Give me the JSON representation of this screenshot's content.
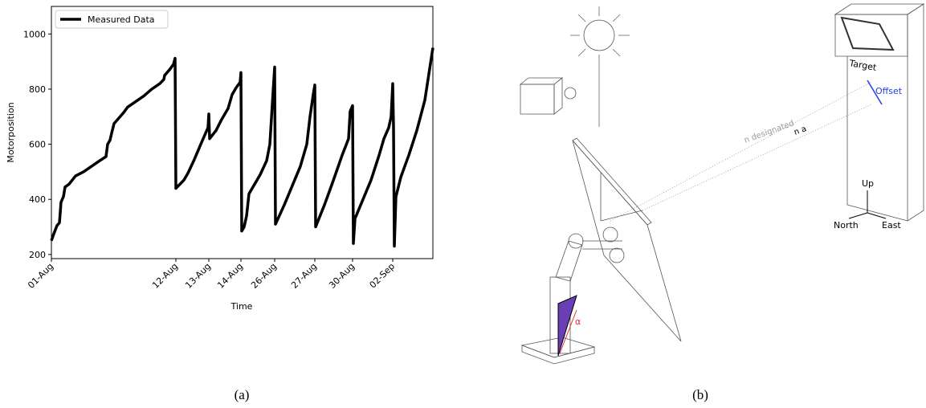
{
  "chart_data": {
    "type": "line",
    "x_label": "Time",
    "y_label": "Motorposition",
    "x": [
      0,
      3,
      7,
      10,
      12,
      15,
      17,
      22,
      26,
      30,
      40,
      50,
      60,
      68,
      70,
      73,
      75,
      78,
      84,
      90,
      95,
      105,
      115,
      125,
      135,
      140,
      141,
      147,
      152,
      154,
      155,
      160,
      165,
      170,
      178,
      186,
      192,
      195,
      196,
      197,
      205,
      212,
      220,
      225,
      230,
      235,
      236,
      237,
      240,
      243,
      246,
      252,
      260,
      268,
      272,
      276,
      278,
      279,
      290,
      300,
      310,
      318,
      322,
      326,
      328,
      329,
      340,
      350,
      362,
      370,
      372,
      375,
      376,
      378,
      388,
      398,
      408,
      414,
      420,
      423,
      425,
      426,
      427,
      429,
      435,
      445,
      455,
      465,
      475
    ],
    "series": [
      {
        "name": "Measured Data",
        "color": "#000000",
        "values": [
          250,
          275,
          305,
          315,
          390,
          410,
          445,
          455,
          470,
          485,
          500,
          520,
          540,
          555,
          600,
          615,
          640,
          675,
          695,
          715,
          735,
          755,
          775,
          800,
          820,
          835,
          850,
          870,
          890,
          912,
          440,
          455,
          470,
          495,
          545,
          600,
          640,
          660,
          710,
          620,
          650,
          690,
          730,
          780,
          805,
          825,
          860,
          285,
          300,
          340,
          420,
          450,
          490,
          540,
          600,
          790,
          880,
          310,
          380,
          450,
          520,
          600,
          700,
          780,
          815,
          300,
          380,
          460,
          560,
          620,
          720,
          740,
          240,
          330,
          400,
          470,
          560,
          620,
          660,
          700,
          820,
          660,
          230,
          410,
          480,
          560,
          650,
          760,
          950
        ]
      }
    ],
    "xlim": [
      0,
      475
    ],
    "xticks": [
      {
        "value": 0,
        "label": "01-Aug"
      },
      {
        "value": 155,
        "label": "12-Aug"
      },
      {
        "value": 196,
        "label": "13-Aug"
      },
      {
        "value": 236,
        "label": "14-Aug"
      },
      {
        "value": 278,
        "label": "26-Aug"
      },
      {
        "value": 328,
        "label": "27-Aug"
      },
      {
        "value": 375,
        "label": "30-Aug"
      },
      {
        "value": 425,
        "label": "02-Sep"
      }
    ],
    "ylim": [
      185,
      1100
    ],
    "yticks": [
      200,
      400,
      600,
      800,
      1000
    ],
    "legend": "upper left"
  },
  "captions": [
    "(a)",
    "(b)"
  ],
  "diagram": {
    "target": "Target",
    "offset": "Offset",
    "n_designated": "n designated",
    "n_a": "n a",
    "up": "Up",
    "north": "North",
    "east": "East",
    "angle": "α"
  }
}
